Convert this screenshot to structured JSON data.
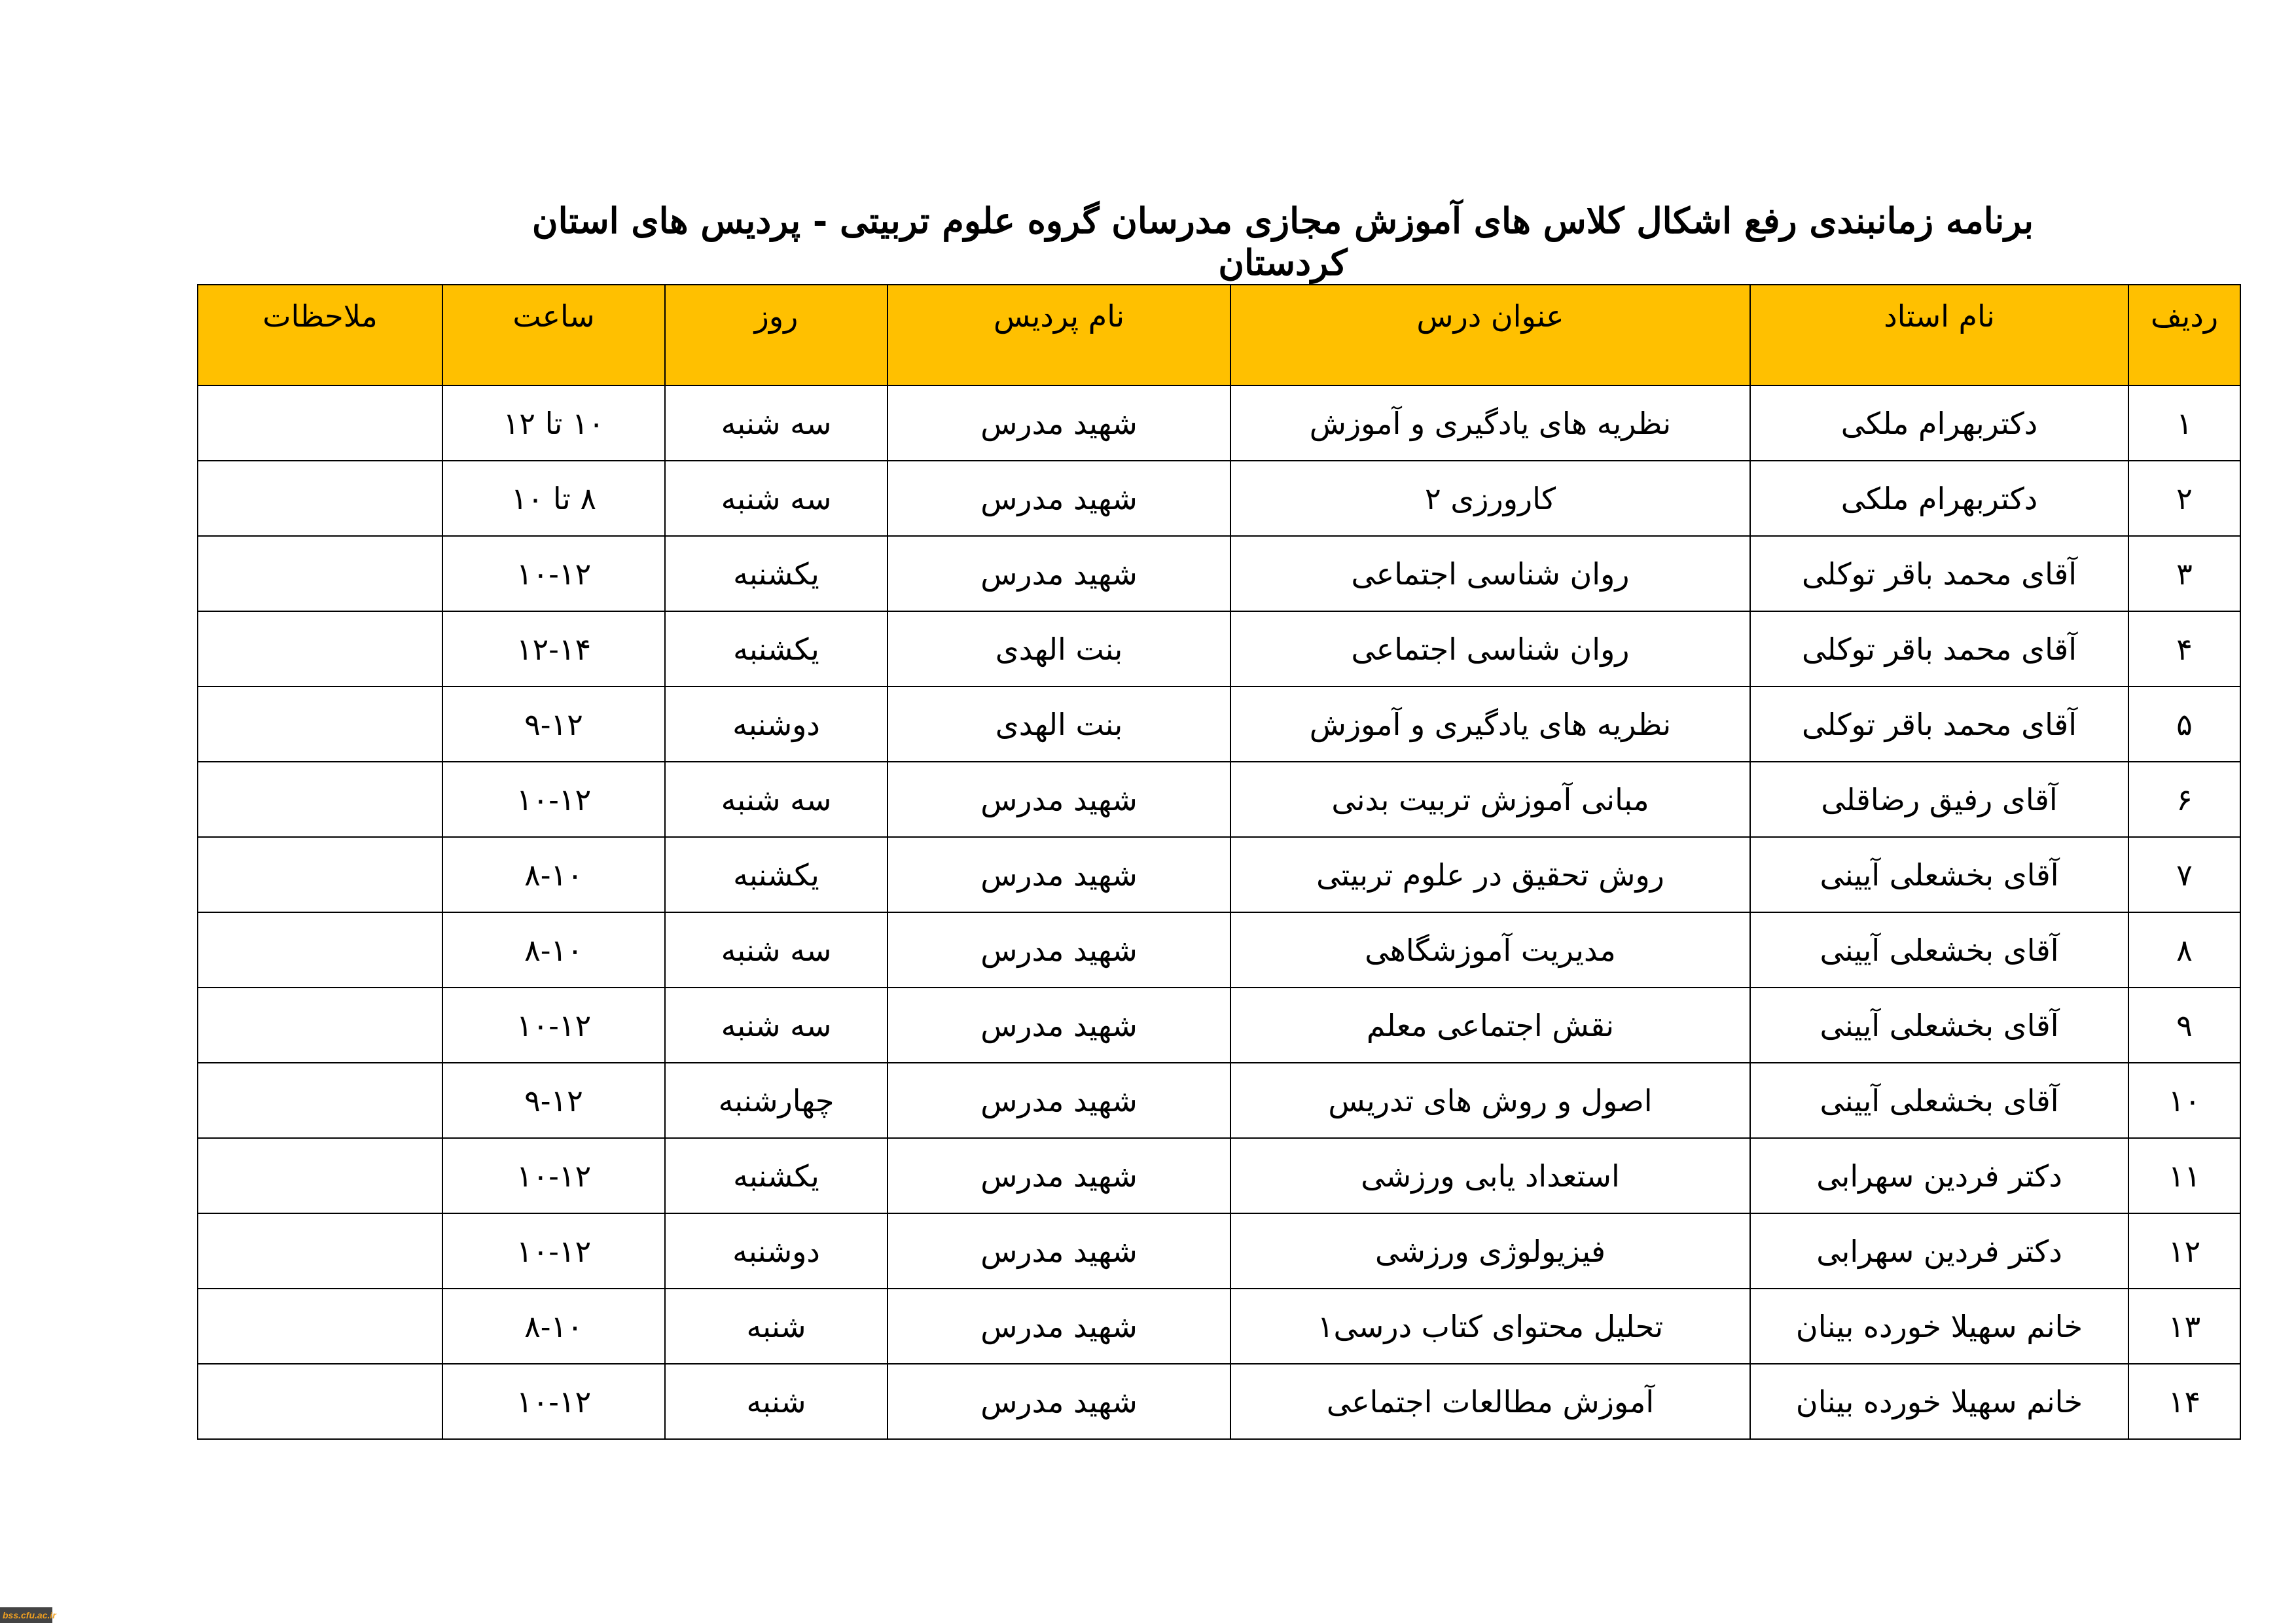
{
  "title": "برنامه زمانبندی رفع اشکال کلاس های آموزش مجازی مدرسان گروه علوم تربیتی - پردیس های استان کردستان",
  "headers": [
    "ردیف",
    "نام استاد",
    "عنوان درس",
    "نام پردیس",
    "روز",
    "ساعت",
    "ملاحظات"
  ],
  "rows": [
    [
      "۱",
      "دکتربهرام ملکی",
      "نظریه های یادگیری و آموزش",
      "شهید مدرس",
      "سه شنبه",
      "۱۰ تا ۱۲",
      ""
    ],
    [
      "۲",
      "دکتربهرام ملکی",
      "کارورزی ۲",
      "شهید مدرس",
      "سه شنبه",
      "۸ تا ۱۰",
      ""
    ],
    [
      "۳",
      "آقای محمد باقر توکلی",
      "روان شناسی اجتماعی",
      "شهید مدرس",
      "یکشنبه",
      "۱۰-۱۲",
      ""
    ],
    [
      "۴",
      "آقای محمد باقر توکلی",
      "روان شناسی اجتماعی",
      "بنت الهدی",
      "یکشنبه",
      "۱۲-۱۴",
      ""
    ],
    [
      "۵",
      "آقای محمد باقر توکلی",
      "نظریه های یادگیری و آموزش",
      "بنت الهدی",
      "دوشنبه",
      "۹-۱۲",
      ""
    ],
    [
      "۶",
      "آقای رفیق رضاقلی",
      "مبانی آموزش تربیت بدنی",
      "شهید مدرس",
      "سه شنبه",
      "۱۰-۱۲",
      ""
    ],
    [
      "۷",
      "آقای بخشعلی آیینی",
      "روش تحقیق در علوم تربیتی",
      "شهید مدرس",
      "یکشنبه",
      "۸-۱۰",
      ""
    ],
    [
      "۸",
      "آقای بخشعلی آیینی",
      "مدیریت آموزشگاهی",
      "شهید مدرس",
      "سه شنبه",
      "۸-۱۰",
      ""
    ],
    [
      "۹",
      "آقای بخشعلی آیینی",
      "نقش اجتماعی معلم",
      "شهید مدرس",
      "سه شنبه",
      "۱۰-۱۲",
      ""
    ],
    [
      "۱۰",
      "آقای بخشعلی آیینی",
      "اصول و روش های تدریس",
      "شهید مدرس",
      "چهارشنبه",
      "۹-۱۲",
      ""
    ],
    [
      "۱۱",
      "دکتر فردین سهرابی",
      "استعداد یابی ورزشی",
      "شهید مدرس",
      "یکشنبه",
      "۱۰-۱۲",
      ""
    ],
    [
      "۱۲",
      "دکتر فردین سهرابی",
      "فیزیولوژی ورزشی",
      "شهید مدرس",
      "دوشنبه",
      "۱۰-۱۲",
      ""
    ],
    [
      "۱۳",
      "خانم سهیلا خورده بینان",
      "تحلیل محتوای کتاب درسی۱",
      "شهید مدرس",
      "شنبه",
      "۸-۱۰",
      ""
    ],
    [
      "۱۴",
      "خانم سهیلا خورده بینان",
      "آموزش مطالعات اجتماعی",
      "شهید مدرس",
      "شنبه",
      "۱۰-۱۲",
      ""
    ]
  ],
  "watermark": "bss.cfu.ac.ir",
  "colors": {
    "header_bg": "#ffc000"
  }
}
